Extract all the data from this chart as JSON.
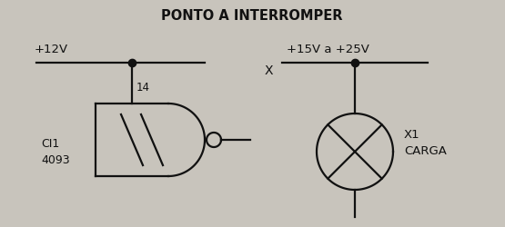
{
  "title": "PONTO A INTERROMPER",
  "bg_color": "#c8c4bc",
  "line_color": "#111111",
  "text_color": "#111111",
  "title_fontsize": 10.5,
  "label_fontsize": 8.5,
  "fig_width": 5.55,
  "fig_height": 2.51,
  "dpi": 100,
  "label_12v": "+12V",
  "label_15v25v": "+15V a +25V",
  "label_x": "X",
  "label_ci": "CI1\n4093",
  "label_pin14": "14",
  "label_x1carga": "X1\nCARGA"
}
